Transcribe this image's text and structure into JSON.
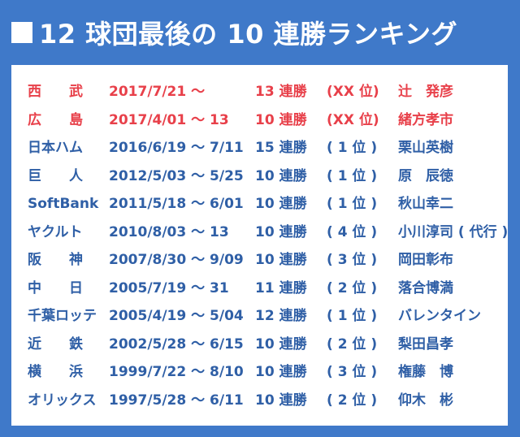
{
  "title": "12 球団最後の 10 連勝ランキング",
  "colors": {
    "background": "#3f79c9",
    "text": "#2f5fa6",
    "highlight": "#e8404a"
  },
  "rows": [
    {
      "team": "西　　武",
      "period": "2017/7/21 〜",
      "streak": "13 連勝",
      "rank": "(XX 位)",
      "manager": "辻　発彦",
      "highlight": true
    },
    {
      "team": "広　　島",
      "period": "2017/4/01 〜 13",
      "streak": "10 連勝",
      "rank": "(XX 位)",
      "manager": "緒方孝市",
      "highlight": true
    },
    {
      "team": "日本ハム",
      "period": "2016/6/19 〜 7/11",
      "streak": "15 連勝",
      "rank": "( 1 位 )",
      "manager": "栗山英樹",
      "highlight": false
    },
    {
      "team": "巨　　人",
      "period": "2012/5/03 〜 5/25",
      "streak": "10 連勝",
      "rank": "( 1 位 )",
      "manager": "原　辰徳",
      "highlight": false
    },
    {
      "team": "SoftBank",
      "period": "2011/5/18 〜 6/01",
      "streak": "10 連勝",
      "rank": "( 1 位 )",
      "manager": "秋山幸二",
      "highlight": false
    },
    {
      "team": "ヤクルト",
      "period": "2010/8/03 〜 13",
      "streak": "10 連勝",
      "rank": "( 4 位 )",
      "manager": "小川淳司 ( 代行 )",
      "highlight": false
    },
    {
      "team": "阪　　神",
      "period": "2007/8/30 〜 9/09",
      "streak": "10 連勝",
      "rank": "( 3 位 )",
      "manager": "岡田彰布",
      "highlight": false
    },
    {
      "team": "中　　日",
      "period": "2005/7/19 〜 31",
      "streak": "11 連勝",
      "rank": "( 2 位 )",
      "manager": "落合博満",
      "highlight": false
    },
    {
      "team": "千葉ロッテ",
      "period": "2005/4/19 〜 5/04",
      "streak": "12 連勝",
      "rank": "( 1 位 )",
      "manager": "バレンタイン",
      "highlight": false
    },
    {
      "team": "近　　鉄",
      "period": "2002/5/28 〜 6/15",
      "streak": "10 連勝",
      "rank": "( 2 位 )",
      "manager": "梨田昌孝",
      "highlight": false
    },
    {
      "team": "横　　浜",
      "period": "1999/7/22 〜 8/10",
      "streak": "10 連勝",
      "rank": "( 3 位 )",
      "manager": "権藤　博",
      "highlight": false
    },
    {
      "team": "オリックス",
      "period": "1997/5/28 〜 6/11",
      "streak": "10 連勝",
      "rank": "( 2 位 )",
      "manager": "仰木　彬",
      "highlight": false
    }
  ]
}
